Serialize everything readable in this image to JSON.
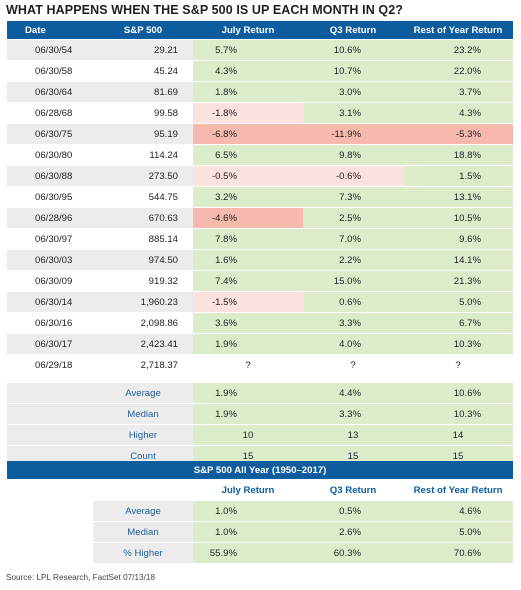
{
  "title": "WHAT HAPPENS WHEN THE S&P 500 IS UP EACH MONTH IN Q2?",
  "colors": {
    "header_blue": "#0d5c9e",
    "positive_green": "#dceccb",
    "negative_light": "#fbe2de",
    "negative_dark": "#f7b9ad",
    "stripe_gray": "#ececec",
    "label_blue": "#1f5f9e"
  },
  "chart_data": [
    {
      "type": "table",
      "title": "WHAT HAPPENS WHEN THE S&P 500 IS UP EACH MONTH IN Q2?",
      "columns": [
        "Date",
        "S&P 500",
        "July Return",
        "Q3 Return",
        "Rest of Year Return"
      ],
      "rows": [
        [
          "06/30/54",
          "29.21",
          "5.7%",
          "10.6%",
          "23.2%"
        ],
        [
          "06/30/58",
          "45.24",
          "4.3%",
          "10.7%",
          "22.0%"
        ],
        [
          "06/30/64",
          "81.69",
          "1.8%",
          "3.0%",
          "3.7%"
        ],
        [
          "06/28/68",
          "99.58",
          "-1.8%",
          "3.1%",
          "4.3%"
        ],
        [
          "06/30/75",
          "95.19",
          "-6.8%",
          "-11.9%",
          "-5.3%"
        ],
        [
          "06/30/80",
          "114.24",
          "6.5%",
          "9.8%",
          "18.8%"
        ],
        [
          "06/30/88",
          "273.50",
          "-0.5%",
          "-0.6%",
          "1.5%"
        ],
        [
          "06/30/95",
          "544.75",
          "3.2%",
          "7.3%",
          "13.1%"
        ],
        [
          "06/28/96",
          "670.63",
          "-4.6%",
          "2.5%",
          "10.5%"
        ],
        [
          "06/30/97",
          "885.14",
          "7.8%",
          "7.0%",
          "9.6%"
        ],
        [
          "06/30/03",
          "974.50",
          "1.6%",
          "2.2%",
          "14.1%"
        ],
        [
          "06/30/09",
          "919.32",
          "7.4%",
          "15.0%",
          "21.3%"
        ],
        [
          "06/30/14",
          "1,960.23",
          "-1.5%",
          "0.6%",
          "5.0%"
        ],
        [
          "06/30/16",
          "2,098.86",
          "3.6%",
          "3.3%",
          "6.7%"
        ],
        [
          "06/30/17",
          "2,423.41",
          "1.9%",
          "4.0%",
          "10.3%"
        ],
        [
          "06/29/18",
          "2,718.37",
          "?",
          "?",
          "?"
        ]
      ],
      "summary": [
        [
          "Average",
          "1.9%",
          "4.4%",
          "10.6%"
        ],
        [
          "Median",
          "1.9%",
          "3.3%",
          "10.3%"
        ],
        [
          "Higher",
          "10",
          "13",
          "14"
        ],
        [
          "Count",
          "15",
          "15",
          "15"
        ]
      ]
    },
    {
      "type": "table",
      "title": "S&P 500 All Year (1950–2017)",
      "columns": [
        "",
        "July Return",
        "Q3 Return",
        "Rest of Year Return"
      ],
      "rows": [
        [
          "Average",
          "1.0%",
          "0.5%",
          "4.6%"
        ],
        [
          "Median",
          "1.0%",
          "2.6%",
          "5.0%"
        ],
        [
          "% Higher",
          "55.9%",
          "60.3%",
          "70.6%"
        ]
      ]
    }
  ],
  "source": "Source: LPL Research, FactSet  07/13/18"
}
